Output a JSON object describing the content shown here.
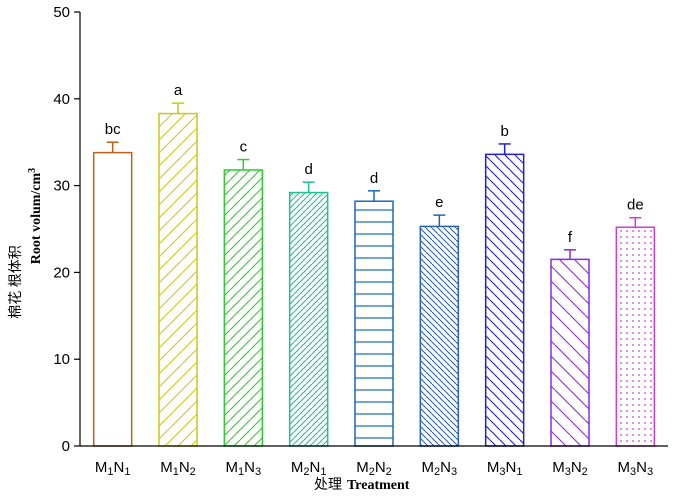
{
  "chart_data": {
    "type": "bar",
    "categories": [
      {
        "m": "1",
        "n": "1"
      },
      {
        "m": "1",
        "n": "2"
      },
      {
        "m": "1",
        "n": "3"
      },
      {
        "m": "2",
        "n": "1"
      },
      {
        "m": "2",
        "n": "2"
      },
      {
        "m": "2",
        "n": "3"
      },
      {
        "m": "3",
        "n": "1"
      },
      {
        "m": "3",
        "n": "2"
      },
      {
        "m": "3",
        "n": "3"
      }
    ],
    "values": [
      33.8,
      38.3,
      31.8,
      29.2,
      28.2,
      25.3,
      33.6,
      21.5,
      25.2
    ],
    "errors": [
      1.2,
      1.2,
      1.2,
      1.2,
      1.2,
      1.3,
      1.2,
      1.1,
      1.1
    ],
    "significance": [
      "bc",
      "a",
      "c",
      "d",
      "d",
      "e",
      "b",
      "f",
      "de"
    ],
    "colors": [
      "#c0601a",
      "#c8c81e",
      "#2ecc2e",
      "#20c090",
      "#1a6ab8",
      "#2a60b0",
      "#2020c8",
      "#8a2be2",
      "#d03cd0"
    ],
    "patterns": [
      "none",
      "diag-wide",
      "diag",
      "diag-dense",
      "horizontal",
      "diag-back-dense",
      "diag-back",
      "diag-back-wide",
      "dots"
    ],
    "ylim": [
      0,
      50
    ],
    "yticks": [
      0,
      10,
      20,
      30,
      40,
      50
    ],
    "xlabel_cn": "处理",
    "xlabel_en": "Treatment",
    "ylabel_cn": "棉花 根体积",
    "ylabel_en": "Root volum/cm",
    "ylabel_en_sup": "3",
    "title": "",
    "legend": "none",
    "grid": false
  }
}
